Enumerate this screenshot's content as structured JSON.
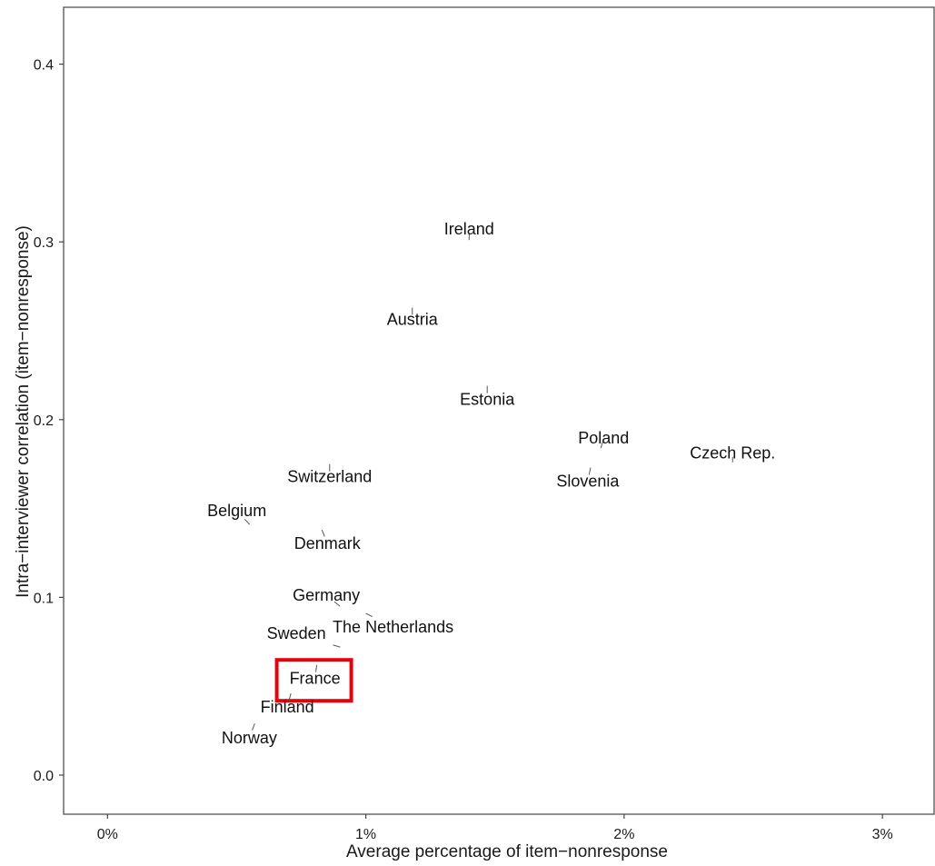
{
  "chart_data": {
    "type": "scatter",
    "title": "",
    "xlabel": "Average percentage of item−nonresponse",
    "ylabel": "Intra−interviewer correlation (item−nonresponse)",
    "xlim": [
      -0.17,
      3.2
    ],
    "ylim": [
      -0.022,
      0.432
    ],
    "x_ticks": [
      0,
      1,
      2,
      3
    ],
    "x_tick_labels": [
      "0%",
      "1%",
      "2%",
      "3%"
    ],
    "y_ticks": [
      0.0,
      0.1,
      0.2,
      0.3,
      0.4
    ],
    "y_tick_labels": [
      "0.0",
      "0.1",
      "0.2",
      "0.3",
      "0.4"
    ],
    "grid": false,
    "highlight_color": "#e8000b",
    "highlighted": "France",
    "points": [
      {
        "label": "Ireland",
        "x": 1.4,
        "y": 0.301
      },
      {
        "label": "Austria",
        "x": 1.18,
        "y": 0.263
      },
      {
        "label": "Estonia",
        "x": 1.47,
        "y": 0.219
      },
      {
        "label": "Poland",
        "x": 1.91,
        "y": 0.184
      },
      {
        "label": "Czech Rep.",
        "x": 2.42,
        "y": 0.176
      },
      {
        "label": "Slovenia",
        "x": 1.87,
        "y": 0.173
      },
      {
        "label": "Switzerland",
        "x": 0.86,
        "y": 0.175
      },
      {
        "label": "Belgium",
        "x": 0.55,
        "y": 0.141
      },
      {
        "label": "Denmark",
        "x": 0.83,
        "y": 0.138
      },
      {
        "label": "Germany",
        "x": 0.9,
        "y": 0.095
      },
      {
        "label": "The Netherlands",
        "x": 1.0,
        "y": 0.091
      },
      {
        "label": "Sweden",
        "x": 0.9,
        "y": 0.072
      },
      {
        "label": "France",
        "x": 0.81,
        "y": 0.062
      },
      {
        "label": "Finland",
        "x": 0.71,
        "y": 0.046
      },
      {
        "label": "Norway",
        "x": 0.57,
        "y": 0.029
      }
    ]
  }
}
